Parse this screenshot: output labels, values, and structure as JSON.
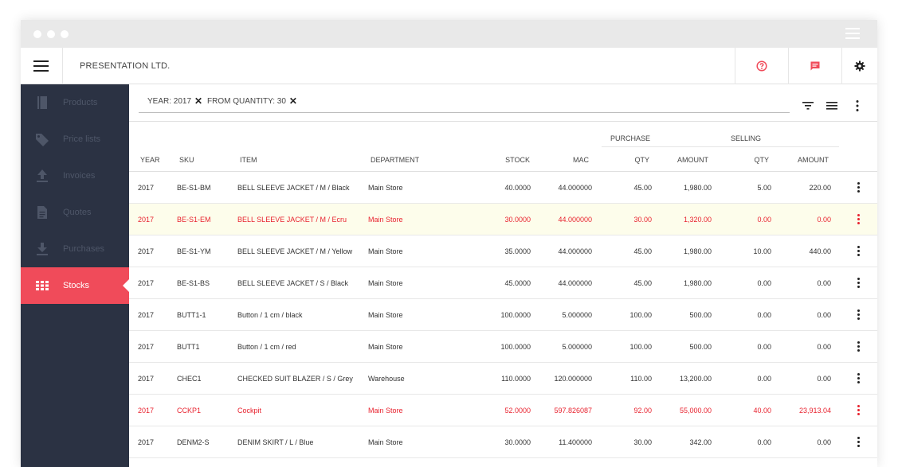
{
  "header": {
    "company": "PRESENTATION LTD."
  },
  "colors": {
    "accent": "#f04b5a",
    "sidebar": "#2b3243",
    "alert_text": "#e8232f",
    "highlight_row": "#fdfdeb"
  },
  "icons": {
    "help": "help-circle-icon",
    "messages": "message-icon",
    "settings": "gear-icon",
    "filter": "filter-icon",
    "list": "list-icon",
    "more": "more-vertical-icon"
  },
  "sidebar": {
    "items": [
      {
        "label": "Products",
        "icon": "book-icon"
      },
      {
        "label": "Price lists",
        "icon": "tag-icon"
      },
      {
        "label": "Invoices",
        "icon": "upload-icon"
      },
      {
        "label": "Quotes",
        "icon": "document-icon"
      },
      {
        "label": "Purchases",
        "icon": "download-icon"
      },
      {
        "label": "Stocks",
        "icon": "grid-icon",
        "active": true
      }
    ]
  },
  "filters": [
    {
      "label": "YEAR: 2017"
    },
    {
      "label": "FROM QUANTITY: 30"
    }
  ],
  "table": {
    "group_headers": {
      "purchase": "PURCHASE",
      "selling": "SELLING"
    },
    "columns": {
      "year": "YEAR",
      "sku": "SKU",
      "item": "ITEM",
      "department": "DEPARTMENT",
      "stock": "STOCK",
      "mac": "MAC",
      "p_qty": "QTY",
      "p_amount": "AMOUNT",
      "s_qty": "QTY",
      "s_amount": "AMOUNT"
    },
    "rows": [
      {
        "year": "2017",
        "sku": "BE-S1-BM",
        "item": "BELL SLEEVE JACKET / M / Black",
        "department": "Main Store",
        "stock": "40.0000",
        "mac": "44.000000",
        "p_qty": "45.00",
        "p_amount": "1,980.00",
        "s_qty": "5.00",
        "s_amount": "220.00",
        "status": "normal"
      },
      {
        "year": "2017",
        "sku": "BE-S1-EM",
        "item": "BELL SLEEVE JACKET / M / Ecru",
        "department": "Main Store",
        "stock": "30.0000",
        "mac": "44.000000",
        "p_qty": "30.00",
        "p_amount": "1,320.00",
        "s_qty": "0.00",
        "s_amount": "0.00",
        "status": "highlight"
      },
      {
        "year": "2017",
        "sku": "BE-S1-YM",
        "item": "BELL SLEEVE JACKET / M / Yellow",
        "department": "Main Store",
        "stock": "35.0000",
        "mac": "44.000000",
        "p_qty": "45.00",
        "p_amount": "1,980.00",
        "s_qty": "10.00",
        "s_amount": "440.00",
        "status": "normal"
      },
      {
        "year": "2017",
        "sku": "BE-S1-BS",
        "item": "BELL SLEEVE JACKET / S / Black",
        "department": "Main Store",
        "stock": "45.0000",
        "mac": "44.000000",
        "p_qty": "45.00",
        "p_amount": "1,980.00",
        "s_qty": "0.00",
        "s_amount": "0.00",
        "status": "normal"
      },
      {
        "year": "2017",
        "sku": "BUTT1-1",
        "item": "Button / 1 cm / black",
        "department": "Main Store",
        "stock": "100.0000",
        "mac": "5.000000",
        "p_qty": "100.00",
        "p_amount": "500.00",
        "s_qty": "0.00",
        "s_amount": "0.00",
        "status": "normal"
      },
      {
        "year": "2017",
        "sku": "BUTT1",
        "item": "Button / 1 cm / red",
        "department": "Main Store",
        "stock": "100.0000",
        "mac": "5.000000",
        "p_qty": "100.00",
        "p_amount": "500.00",
        "s_qty": "0.00",
        "s_amount": "0.00",
        "status": "normal"
      },
      {
        "year": "2017",
        "sku": "CHEC1",
        "item": "CHECKED SUIT BLAZER / S / Grey",
        "department": "Warehouse",
        "stock": "110.0000",
        "mac": "120.000000",
        "p_qty": "110.00",
        "p_amount": "13,200.00",
        "s_qty": "0.00",
        "s_amount": "0.00",
        "status": "normal"
      },
      {
        "year": "2017",
        "sku": "CCKP1",
        "item": "Cockpit",
        "department": "Main Store",
        "stock": "52.0000",
        "mac": "597.826087",
        "p_qty": "92.00",
        "p_amount": "55,000.00",
        "s_qty": "40.00",
        "s_amount": "23,913.04",
        "status": "alert"
      },
      {
        "year": "2017",
        "sku": "DENM2-S",
        "item": "DENIM SKIRT / L / Blue",
        "department": "Main Store",
        "stock": "30.0000",
        "mac": "11.400000",
        "p_qty": "30.00",
        "p_amount": "342.00",
        "s_qty": "0.00",
        "s_amount": "0.00",
        "status": "normal"
      }
    ]
  }
}
